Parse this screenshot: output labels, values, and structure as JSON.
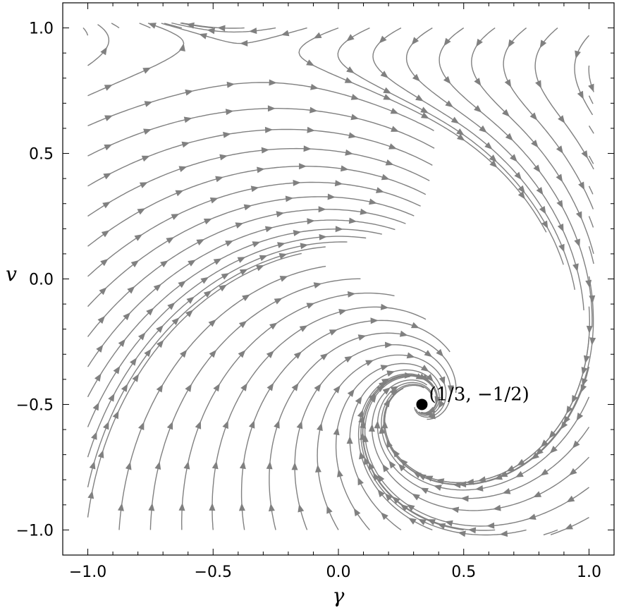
{
  "chart_data": {
    "type": "streamplot",
    "xlabel": "γ",
    "ylabel": "v",
    "xlim": [
      -1.1,
      1.1
    ],
    "ylim": [
      -1.1,
      1.1
    ],
    "xticks": [
      -1.0,
      -0.5,
      0.0,
      0.5,
      1.0
    ],
    "xtick_labels": [
      "−1.0",
      "−0.5",
      "0.0",
      "0.5",
      "1.0"
    ],
    "yticks": [
      -1.0,
      -0.5,
      0.0,
      0.5,
      1.0
    ],
    "ytick_labels": [
      "−1.0",
      "−0.5",
      "0.0",
      "0.5",
      "1.0"
    ],
    "grid": false,
    "critical_point": {
      "x": 0.3333,
      "y": -0.5,
      "label": "(1/3, −1/2)"
    },
    "colors": {
      "streamline": "#808080",
      "point": "#000000",
      "frame": "#000000"
    }
  }
}
